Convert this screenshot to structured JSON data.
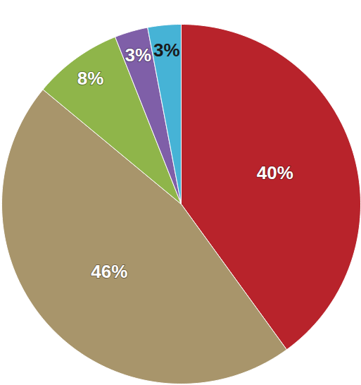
{
  "chart_data": {
    "type": "pie",
    "values": [
      40,
      46,
      8,
      3,
      3
    ],
    "value_labels": [
      "40%",
      "46%",
      "8%",
      "3%",
      "3%"
    ],
    "colors": [
      "#b8232b",
      "#a8956b",
      "#8fb54a",
      "#7f5fa8",
      "#46b3d6"
    ],
    "data_labels": true
  }
}
